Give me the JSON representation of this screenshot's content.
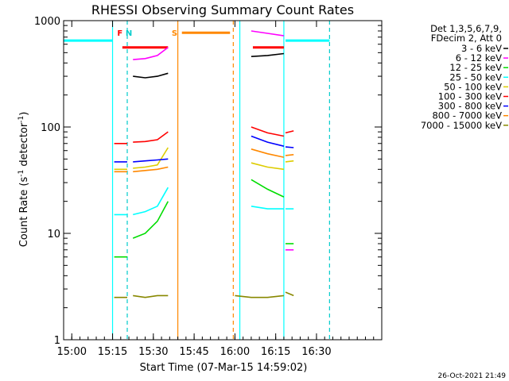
{
  "chart_data": {
    "type": "line",
    "title": "RHESSI Observing Summary Count Rates",
    "xlabel": "Start Time (07-Mar-15 14:59:02)",
    "ylabel_main": "Count Rate (s",
    "ylabel_sup1": "-1",
    "ylabel_mid": " detector",
    "ylabel_sup2": "-1",
    "ylabel_end": ")",
    "y_scale": "log",
    "ylim": [
      1,
      1000
    ],
    "xlim_minutes": [
      -1,
      38
    ],
    "x_ticks": [
      {
        "m": 0,
        "label": "15:00"
      },
      {
        "m": 5,
        "label": "15:15"
      },
      {
        "m": 10,
        "label": "15:30"
      },
      {
        "m": 15,
        "label": "15:45"
      },
      {
        "m": 20,
        "label": "16:00"
      },
      {
        "m": 25,
        "label": "16:15"
      },
      {
        "m": 30,
        "label": "16:30"
      }
    ],
    "y_ticks": [
      {
        "v": 1,
        "label": "1"
      },
      {
        "v": 10,
        "label": "10"
      },
      {
        "v": 100,
        "label": "100"
      },
      {
        "v": 1000,
        "label": "1000"
      }
    ],
    "legend_header": [
      "Det 1,3,5,6,7,9,",
      "FDecim 2, Att 0"
    ],
    "legend_position": "right",
    "series": [
      {
        "name": "3 - 6 keV",
        "color": "#000000",
        "segments": [
          [
            [
              7.5,
              300
            ],
            [
              9.0,
              290
            ],
            [
              10.5,
              300
            ],
            [
              11.8,
              320
            ]
          ],
          [
            [
              22.0,
              460
            ],
            [
              24.0,
              470
            ],
            [
              26.0,
              490
            ]
          ]
        ]
      },
      {
        "name": "6 - 12 keV",
        "color": "#ff00ff",
        "segments": [
          [
            [
              7.5,
              430
            ],
            [
              9.0,
              440
            ],
            [
              10.5,
              470
            ],
            [
              11.8,
              560
            ]
          ],
          [
            [
              22.0,
              800
            ],
            [
              24.0,
              760
            ],
            [
              26.0,
              720
            ]
          ],
          [
            [
              26.2,
              7
            ],
            [
              27.2,
              7
            ]
          ]
        ]
      },
      {
        "name": "12 - 25 keV",
        "color": "#00dd00",
        "segments": [
          [
            [
              5.2,
              6
            ],
            [
              6.8,
              6
            ]
          ],
          [
            [
              7.5,
              9
            ],
            [
              9.0,
              10
            ],
            [
              10.5,
              13
            ],
            [
              11.8,
              20
            ]
          ],
          [
            [
              22.0,
              32
            ],
            [
              24.0,
              26
            ],
            [
              26.0,
              22
            ]
          ],
          [
            [
              26.2,
              8
            ],
            [
              27.2,
              8
            ]
          ]
        ]
      },
      {
        "name": "25 - 50 keV",
        "color": "#00ffff",
        "segments": [
          [
            [
              5.2,
              15
            ],
            [
              6.8,
              15
            ]
          ],
          [
            [
              7.5,
              15
            ],
            [
              9.0,
              16
            ],
            [
              10.5,
              18
            ],
            [
              11.8,
              27
            ]
          ],
          [
            [
              22.0,
              18
            ],
            [
              24.0,
              17
            ],
            [
              26.0,
              17
            ]
          ],
          [
            [
              26.2,
              17
            ],
            [
              27.2,
              17
            ]
          ]
        ]
      },
      {
        "name": "50 - 100 keV",
        "color": "#ddcc00",
        "segments": [
          [
            [
              5.2,
              40
            ],
            [
              6.8,
              40
            ]
          ],
          [
            [
              7.5,
              41
            ],
            [
              9.0,
              42
            ],
            [
              10.5,
              44
            ],
            [
              11.8,
              64
            ]
          ],
          [
            [
              22.0,
              46
            ],
            [
              24.0,
              42
            ],
            [
              26.0,
              40
            ]
          ],
          [
            [
              26.2,
              47
            ],
            [
              27.2,
              48
            ]
          ]
        ]
      },
      {
        "name": "100 - 300 keV",
        "color": "#ff0000",
        "segments": [
          [
            [
              5.2,
              70
            ],
            [
              6.8,
              70
            ]
          ],
          [
            [
              7.5,
              72
            ],
            [
              9.0,
              73
            ],
            [
              10.5,
              76
            ],
            [
              11.8,
              90
            ]
          ],
          [
            [
              22.0,
              100
            ],
            [
              24.0,
              88
            ],
            [
              26.0,
              82
            ]
          ],
          [
            [
              26.2,
              88
            ],
            [
              27.2,
              92
            ]
          ]
        ]
      },
      {
        "name": "300 - 800 keV",
        "color": "#0000ff",
        "segments": [
          [
            [
              5.2,
              47
            ],
            [
              6.8,
              47
            ]
          ],
          [
            [
              7.5,
              47
            ],
            [
              9.0,
              48
            ],
            [
              10.5,
              49
            ],
            [
              11.8,
              50
            ]
          ],
          [
            [
              22.0,
              82
            ],
            [
              24.0,
              72
            ],
            [
              26.0,
              66
            ]
          ],
          [
            [
              26.2,
              65
            ],
            [
              27.2,
              64
            ]
          ]
        ]
      },
      {
        "name": "800 - 7000 keV",
        "color": "#ff8800",
        "segments": [
          [
            [
              5.2,
              38
            ],
            [
              6.8,
              38
            ]
          ],
          [
            [
              7.5,
              38
            ],
            [
              9.0,
              39
            ],
            [
              10.5,
              40
            ],
            [
              11.8,
              42
            ]
          ],
          [
            [
              22.0,
              62
            ],
            [
              24.0,
              56
            ],
            [
              26.0,
              52
            ]
          ],
          [
            [
              26.2,
              54
            ],
            [
              27.2,
              55
            ]
          ]
        ]
      },
      {
        "name": "7000 - 15000 keV",
        "color": "#888800",
        "segments": [
          [
            [
              5.2,
              2.5
            ],
            [
              6.8,
              2.5
            ]
          ],
          [
            [
              7.5,
              2.6
            ],
            [
              9.0,
              2.5
            ],
            [
              10.5,
              2.6
            ],
            [
              11.8,
              2.6
            ]
          ],
          [
            [
              20.0,
              2.6
            ],
            [
              22.0,
              2.5
            ],
            [
              24.0,
              2.5
            ],
            [
              26.0,
              2.6
            ]
          ],
          [
            [
              26.2,
              2.8
            ],
            [
              27.2,
              2.6
            ]
          ]
        ]
      }
    ],
    "flag_labels": [
      {
        "text": "F",
        "m": 5.9,
        "color": "#ff0000"
      },
      {
        "text": "N",
        "m": 7.0,
        "color": "#00cccc"
      },
      {
        "text": "S",
        "m": 12.6,
        "color": "#ff8800"
      }
    ],
    "flag_bars": [
      {
        "m0": 6.2,
        "m1": 11.8,
        "v": 560,
        "color": "#ff0000"
      },
      {
        "m0": 13.5,
        "m1": 19.4,
        "v": 770,
        "color": "#ff8800"
      },
      {
        "m0": 22.2,
        "m1": 26.0,
        "v": 560,
        "color": "#ff0000"
      },
      {
        "m0": -1.0,
        "m1": 5.0,
        "v": 650,
        "color": "#00ffff"
      },
      {
        "m0": 26.2,
        "m1": 31.6,
        "v": 650,
        "color": "#00ffff"
      }
    ],
    "vertical_lines": [
      {
        "m": 5.0,
        "color": "#00ffff",
        "dashed": false
      },
      {
        "m": 6.8,
        "color": "#00cccc",
        "dashed": true
      },
      {
        "m": 13.0,
        "color": "#ff8800",
        "dashed": false
      },
      {
        "m": 19.8,
        "color": "#ff8800",
        "dashed": true
      },
      {
        "m": 20.6,
        "color": "#00ffff",
        "dashed": false
      },
      {
        "m": 26.0,
        "color": "#00ffff",
        "dashed": false
      },
      {
        "m": 31.6,
        "color": "#00cccc",
        "dashed": true
      }
    ],
    "timestamp": "26-Oct-2021 21:49"
  }
}
